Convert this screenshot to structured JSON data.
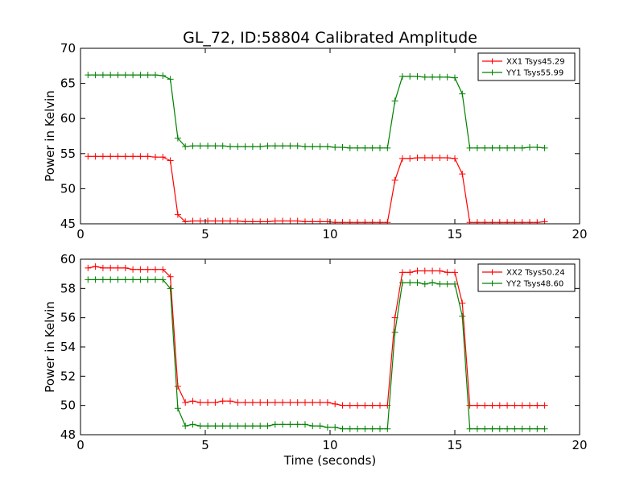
{
  "title": "GL_72, ID:58804 Calibrated Amplitude",
  "chart_data": [
    {
      "type": "line",
      "ylabel": "Power in Kelvin",
      "xlabel": "",
      "xlim": [
        0,
        20
      ],
      "ylim": [
        45,
        70
      ],
      "xticks": [
        0,
        5,
        10,
        15,
        20
      ],
      "yticks": [
        45,
        50,
        55,
        60,
        65,
        70
      ],
      "legend_position": "top-right",
      "grid": false,
      "x": [
        0.3,
        0.6,
        0.9,
        1.2,
        1.5,
        1.8,
        2.1,
        2.4,
        2.7,
        3.0,
        3.3,
        3.6,
        3.9,
        4.2,
        4.5,
        4.8,
        5.1,
        5.4,
        5.7,
        6.0,
        6.3,
        6.6,
        6.9,
        7.2,
        7.5,
        7.8,
        8.1,
        8.4,
        8.7,
        9.0,
        9.3,
        9.6,
        9.9,
        10.2,
        10.5,
        10.8,
        11.1,
        11.4,
        11.7,
        12.0,
        12.3,
        12.6,
        12.9,
        13.2,
        13.5,
        13.8,
        14.1,
        14.4,
        14.7,
        15.0,
        15.3,
        15.6,
        15.9,
        16.2,
        16.5,
        16.8,
        17.1,
        17.4,
        17.7,
        18.0,
        18.3,
        18.6
      ],
      "series": [
        {
          "name": "XX1 Tsys45.29",
          "color": "#ff0000",
          "values": [
            54.6,
            54.6,
            54.6,
            54.6,
            54.6,
            54.6,
            54.6,
            54.6,
            54.6,
            54.5,
            54.5,
            54.0,
            46.3,
            45.3,
            45.4,
            45.4,
            45.4,
            45.4,
            45.4,
            45.4,
            45.4,
            45.3,
            45.3,
            45.3,
            45.3,
            45.4,
            45.4,
            45.4,
            45.4,
            45.3,
            45.3,
            45.3,
            45.3,
            45.2,
            45.2,
            45.2,
            45.2,
            45.2,
            45.2,
            45.2,
            45.2,
            51.2,
            54.3,
            54.3,
            54.4,
            54.4,
            54.4,
            54.4,
            54.4,
            54.3,
            52.1,
            45.2,
            45.2,
            45.2,
            45.2,
            45.2,
            45.2,
            45.2,
            45.2,
            45.2,
            45.2,
            45.3
          ]
        },
        {
          "name": "YY1 Tsys55.99",
          "color": "#008000",
          "values": [
            66.2,
            66.2,
            66.2,
            66.2,
            66.2,
            66.2,
            66.2,
            66.2,
            66.2,
            66.2,
            66.1,
            65.6,
            57.2,
            56.0,
            56.1,
            56.1,
            56.1,
            56.1,
            56.1,
            56.0,
            56.0,
            56.0,
            56.0,
            56.0,
            56.1,
            56.1,
            56.1,
            56.1,
            56.1,
            56.0,
            56.0,
            56.0,
            56.0,
            55.9,
            55.9,
            55.8,
            55.8,
            55.8,
            55.8,
            55.8,
            55.8,
            62.5,
            66.0,
            66.0,
            66.0,
            65.9,
            65.9,
            65.9,
            65.9,
            65.8,
            63.5,
            55.8,
            55.8,
            55.8,
            55.8,
            55.8,
            55.8,
            55.8,
            55.8,
            55.9,
            55.9,
            55.8
          ]
        }
      ]
    },
    {
      "type": "line",
      "ylabel": "Power in Kelvin",
      "xlabel": "Time (seconds)",
      "xlim": [
        0,
        20
      ],
      "ylim": [
        48,
        60
      ],
      "xticks": [
        0,
        5,
        10,
        15,
        20
      ],
      "yticks": [
        48,
        50,
        52,
        54,
        56,
        58,
        60
      ],
      "legend_position": "top-right",
      "grid": false,
      "x": [
        0.3,
        0.6,
        0.9,
        1.2,
        1.5,
        1.8,
        2.1,
        2.4,
        2.7,
        3.0,
        3.3,
        3.6,
        3.9,
        4.2,
        4.5,
        4.8,
        5.1,
        5.4,
        5.7,
        6.0,
        6.3,
        6.6,
        6.9,
        7.2,
        7.5,
        7.8,
        8.1,
        8.4,
        8.7,
        9.0,
        9.3,
        9.6,
        9.9,
        10.2,
        10.5,
        10.8,
        11.1,
        11.4,
        11.7,
        12.0,
        12.3,
        12.6,
        12.9,
        13.2,
        13.5,
        13.8,
        14.1,
        14.4,
        14.7,
        15.0,
        15.3,
        15.6,
        15.9,
        16.2,
        16.5,
        16.8,
        17.1,
        17.4,
        17.7,
        18.0,
        18.3,
        18.6
      ],
      "series": [
        {
          "name": "XX2 Tsys50.24",
          "color": "#ff0000",
          "values": [
            59.4,
            59.5,
            59.4,
            59.4,
            59.4,
            59.4,
            59.3,
            59.3,
            59.3,
            59.3,
            59.3,
            58.8,
            51.3,
            50.2,
            50.3,
            50.2,
            50.2,
            50.2,
            50.3,
            50.3,
            50.2,
            50.2,
            50.2,
            50.2,
            50.2,
            50.2,
            50.2,
            50.2,
            50.2,
            50.2,
            50.2,
            50.2,
            50.2,
            50.1,
            50.0,
            50.0,
            50.0,
            50.0,
            50.0,
            50.0,
            50.0,
            56.0,
            59.1,
            59.1,
            59.2,
            59.2,
            59.2,
            59.2,
            59.1,
            59.1,
            57.0,
            50.0,
            50.0,
            50.0,
            50.0,
            50.0,
            50.0,
            50.0,
            50.0,
            50.0,
            50.0,
            50.0
          ]
        },
        {
          "name": "YY2 Tsys48.60",
          "color": "#008000",
          "values": [
            58.6,
            58.6,
            58.6,
            58.6,
            58.6,
            58.6,
            58.6,
            58.6,
            58.6,
            58.6,
            58.6,
            58.0,
            49.8,
            48.6,
            48.7,
            48.6,
            48.6,
            48.6,
            48.6,
            48.6,
            48.6,
            48.6,
            48.6,
            48.6,
            48.6,
            48.7,
            48.7,
            48.7,
            48.7,
            48.7,
            48.6,
            48.6,
            48.5,
            48.5,
            48.4,
            48.4,
            48.4,
            48.4,
            48.4,
            48.4,
            48.4,
            55.0,
            58.4,
            58.4,
            58.4,
            58.3,
            58.4,
            58.3,
            58.3,
            58.3,
            56.1,
            48.4,
            48.4,
            48.4,
            48.4,
            48.4,
            48.4,
            48.4,
            48.4,
            48.4,
            48.4,
            48.4
          ]
        }
      ]
    }
  ]
}
